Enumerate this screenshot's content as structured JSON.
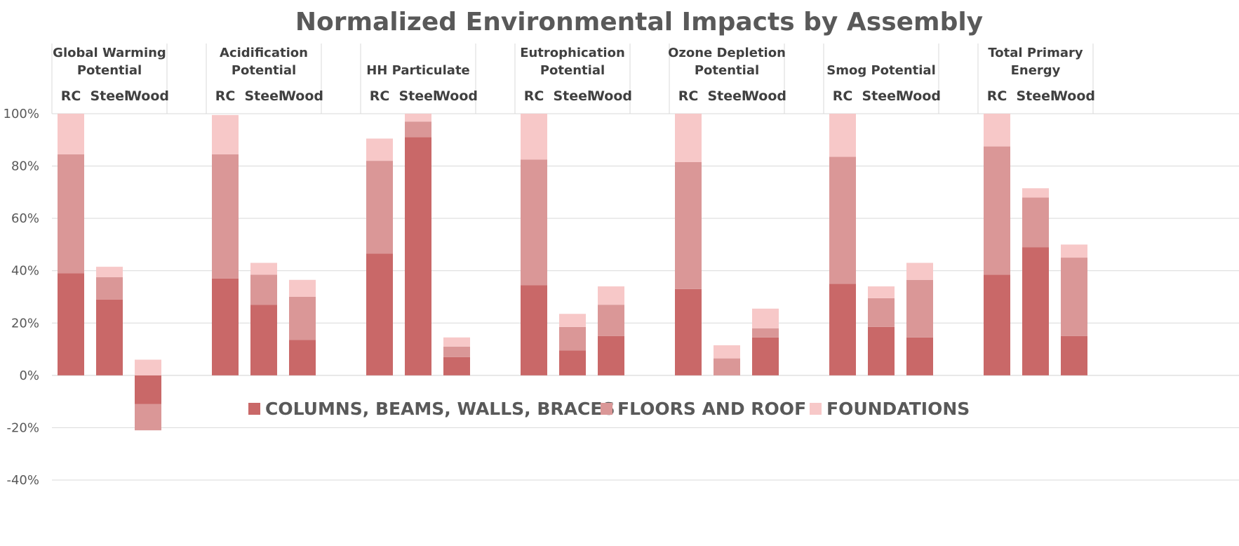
{
  "chart_data": {
    "type": "bar",
    "stacked": true,
    "title": "Normalized Environmental Impacts by Assembly",
    "groups": [
      "Global Warming Potential",
      "Acidification Potential",
      "HH Particulate",
      "Eutrophication Potential",
      "Ozone Depletion Potential",
      "Smog Potential",
      "Total Primary Energy"
    ],
    "group_label_lines": [
      [
        "Global Warming",
        "Potential"
      ],
      [
        "Acidification",
        "Potential"
      ],
      [
        "HH Particulate"
      ],
      [
        "Eutrophication",
        "Potential"
      ],
      [
        "Ozone Depletion",
        "Potential"
      ],
      [
        "Smog Potential"
      ],
      [
        "Total Primary",
        "Energy"
      ]
    ],
    "categories": [
      "RC",
      "Steel",
      "Wood"
    ],
    "series": [
      {
        "name": "COLUMNS, BEAMS, WALLS, BRACES",
        "color": "#c96868",
        "values": [
          [
            39,
            29,
            -11
          ],
          [
            37,
            27,
            13.5
          ],
          [
            46.5,
            91,
            7
          ],
          [
            34.5,
            9.5,
            15
          ],
          [
            33,
            0,
            14.5
          ],
          [
            35,
            18.5,
            14.5
          ],
          [
            38.5,
            49,
            15
          ]
        ]
      },
      {
        "name": "FLOORS AND ROOF",
        "color": "#da9797",
        "values": [
          [
            45.5,
            8.5,
            -10
          ],
          [
            47.5,
            11.5,
            16.5
          ],
          [
            35.5,
            6,
            4
          ],
          [
            48,
            9,
            12
          ],
          [
            48.5,
            6.5,
            3.5
          ],
          [
            48.5,
            11,
            22
          ],
          [
            49,
            19,
            30
          ]
        ]
      },
      {
        "name": "FOUNDATIONS",
        "color": "#f7c8c8",
        "values": [
          [
            15.5,
            4,
            6
          ],
          [
            15,
            4.5,
            6.5
          ],
          [
            8.5,
            3,
            3.5
          ],
          [
            17.5,
            5,
            7
          ],
          [
            18.5,
            5,
            7.5
          ],
          [
            16.5,
            4.5,
            6.5
          ],
          [
            12.5,
            3.5,
            5
          ]
        ]
      }
    ],
    "y_ticks": [
      "100%",
      "80%",
      "60%",
      "40%",
      "20%",
      "0%",
      "-20%",
      "-40%"
    ],
    "ylim": [
      -40,
      100
    ],
    "grid": true,
    "legend_position": "inside-center"
  }
}
